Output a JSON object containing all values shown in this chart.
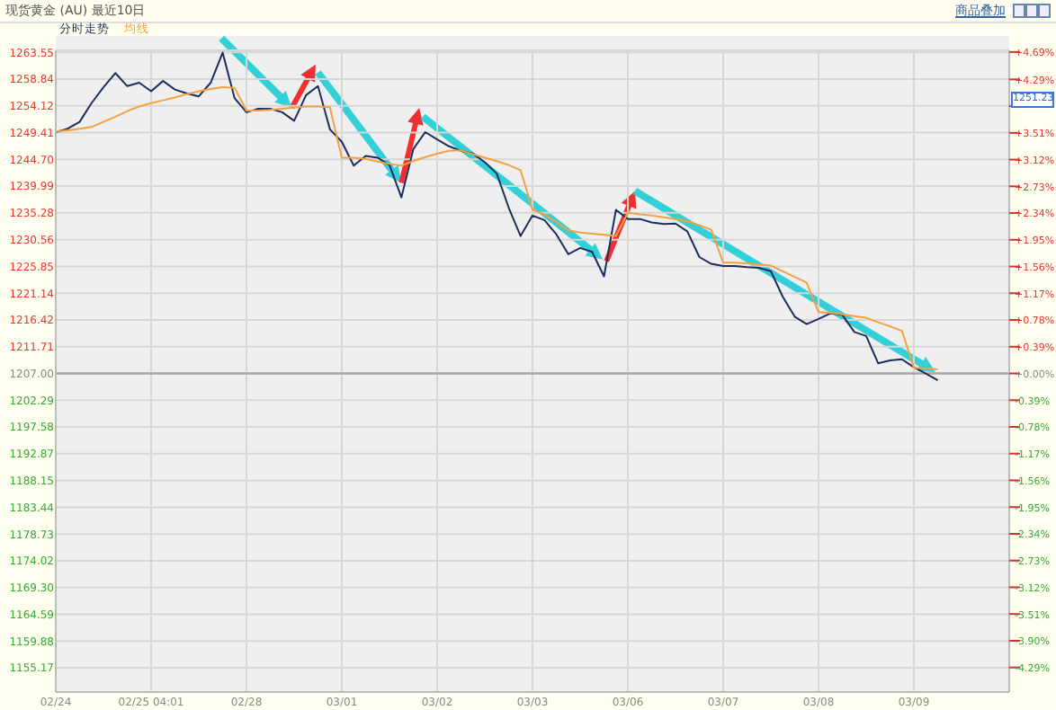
{
  "chart_data": {
    "type": "line",
    "title": "现货黄金 (AU) 最近10日",
    "annotations": [
      "商品叠加",
      "1251.23"
    ],
    "categories": [
      "02/24",
      null,
      null,
      null,
      null,
      null,
      null,
      null,
      "02/25 04:01",
      null,
      null,
      null,
      null,
      null,
      null,
      null,
      "02/28",
      null,
      null,
      null,
      null,
      null,
      null,
      null,
      "03/01",
      null,
      null,
      null,
      null,
      null,
      null,
      null,
      "03/02",
      null,
      null,
      null,
      null,
      null,
      null,
      null,
      "03/03",
      null,
      null,
      null,
      null,
      null,
      null,
      null,
      "03/06",
      null,
      null,
      null,
      null,
      null,
      null,
      null,
      "03/07",
      null,
      null,
      null,
      null,
      null,
      null,
      null,
      "03/08",
      null,
      null,
      null,
      null,
      null,
      null,
      null,
      "03/09",
      null,
      null,
      null,
      null,
      null,
      null,
      null
    ],
    "ylim": [
      1150.9,
      1263.9
    ],
    "yticks": [
      {
        "value": 1263.55,
        "label": "1263.55"
      },
      {
        "value": 1258.84,
        "label": "1258.84"
      },
      {
        "value": 1254.12,
        "label": "1254.12"
      },
      {
        "value": 1249.41,
        "label": "1249.41"
      },
      {
        "value": 1244.7,
        "label": "1244.70"
      },
      {
        "value": 1239.99,
        "label": "1239.99"
      },
      {
        "value": 1235.28,
        "label": "1235.28"
      },
      {
        "value": 1230.56,
        "label": "1230.56"
      },
      {
        "value": 1225.85,
        "label": "1225.85"
      },
      {
        "value": 1221.14,
        "label": "1221.14"
      },
      {
        "value": 1216.42,
        "label": "1216.42"
      },
      {
        "value": 1211.71,
        "label": "1211.71"
      },
      {
        "value": 1207.0,
        "label": "1207.00"
      },
      {
        "value": 1202.29,
        "label": "1202.29"
      },
      {
        "value": 1197.58,
        "label": "1197.58"
      },
      {
        "value": 1192.87,
        "label": "1192.87"
      },
      {
        "value": 1188.15,
        "label": "1188.15"
      },
      {
        "value": 1183.44,
        "label": "1183.44"
      },
      {
        "value": 1178.73,
        "label": "1178.73"
      },
      {
        "value": 1174.02,
        "label": "1174.02"
      },
      {
        "value": 1169.3,
        "label": "1169.30"
      },
      {
        "value": 1164.59,
        "label": "1164.59"
      },
      {
        "value": 1159.88,
        "label": "1159.88"
      },
      {
        "value": 1155.17,
        "label": "1155.17"
      }
    ],
    "y2lim": [
      -4.648,
      4.714
    ],
    "y2ticks": [
      {
        "value": 4.69,
        "label": "+4.69%"
      },
      {
        "value": 4.29,
        "label": "+4.29%"
      },
      {
        "value": 3.9,
        "label": null
      },
      {
        "value": 3.51,
        "label": "+3.51%"
      },
      {
        "value": 3.12,
        "label": "+3.12%"
      },
      {
        "value": 2.73,
        "label": "+2.73%"
      },
      {
        "value": 2.34,
        "label": "+2.34%"
      },
      {
        "value": 1.95,
        "label": "+1.95%"
      },
      {
        "value": 1.56,
        "label": "+1.56%"
      },
      {
        "value": 1.17,
        "label": "+1.17%"
      },
      {
        "value": 0.78,
        "label": "+0.78%"
      },
      {
        "value": 0.39,
        "label": "+0.39%"
      },
      {
        "value": 0,
        "label": "+0.00%"
      },
      {
        "value": -0.39,
        "label": "-0.39%"
      },
      {
        "value": -0.78,
        "label": "-0.78%"
      },
      {
        "value": -1.17,
        "label": "-1.17%"
      },
      {
        "value": -1.56,
        "label": "-1.56%"
      },
      {
        "value": -1.95,
        "label": "-1.95%"
      },
      {
        "value": -2.34,
        "label": "-2.34%"
      },
      {
        "value": -2.73,
        "label": "-2.73%"
      },
      {
        "value": -3.12,
        "label": "-3.12%"
      },
      {
        "value": -3.51,
        "label": "-3.51%"
      },
      {
        "value": -3.9,
        "label": "-3.90%"
      },
      {
        "value": -4.29,
        "label": "-4.29%"
      }
    ],
    "ref_lines": [
      {
        "axis": "y",
        "value": 1207.0,
        "color": "#a8a8a8"
      }
    ],
    "grid": true,
    "legend": "top left",
    "line_style": "solid",
    "series": [
      {
        "name": "分时走势",
        "color": "#1c2e5c",
        "values": [
          1249.5,
          1250.1,
          1251.3,
          1254.6,
          1257.4,
          1259.9,
          1257.6,
          1258.2,
          1256.7,
          1258.5,
          1257.0,
          1256.3,
          1255.8,
          1258.2,
          1263.5,
          1255.5,
          1253.0,
          1253.6,
          1253.6,
          1253.0,
          1251.5,
          1256.0,
          1257.6,
          1250.0,
          1247.8,
          1243.6,
          1245.3,
          1245.0,
          1243.7,
          1238.0,
          1246.5,
          1249.5,
          1248.2,
          1247.0,
          1246.2,
          1245.7,
          1244.2,
          1242.2,
          1236.2,
          1231.2,
          1234.8,
          1234.0,
          1231.5,
          1228.0,
          1229.1,
          1228.4,
          1224.1,
          1235.8,
          1234.2,
          1234.2,
          1233.6,
          1233.3,
          1233.4,
          1232.0,
          1227.5,
          1226.3,
          1225.9,
          1225.9,
          1225.7,
          1225.6,
          1225.0,
          1220.5,
          1217.0,
          1215.7,
          1216.6,
          1217.6,
          1217.3,
          1214.3,
          1213.6,
          1208.8,
          1209.3,
          1209.5,
          1208.1,
          1207.0,
          1205.8,
          null,
          null,
          null,
          null,
          null
        ]
      },
      {
        "name": "均线",
        "color": "#f5a040",
        "values": [
          1249.6,
          1249.8,
          1250.1,
          1250.4,
          1251.3,
          1252.2,
          1253.2,
          1254.0,
          1254.6,
          1255.1,
          1255.6,
          1256.2,
          1256.7,
          1257.1,
          1257.4,
          1257.3,
          1253.3,
          1253.3,
          1253.4,
          1253.6,
          1253.8,
          1254.0,
          1254.0,
          1253.9,
          1245.0,
          1245.0,
          1244.8,
          1244.3,
          1243.9,
          1243.6,
          1244.4,
          1245.1,
          1245.7,
          1246.2,
          1246.3,
          1245.6,
          1245.0,
          1244.4,
          1243.7,
          1242.8,
          1235.8,
          1235.0,
          1233.6,
          1232.2,
          1231.8,
          1231.6,
          1231.4,
          1231.2,
          1235.3,
          1235.0,
          1234.8,
          1234.5,
          1234.2,
          1233.8,
          1233.1,
          1232.3,
          1226.5,
          1226.5,
          1226.4,
          1226.2,
          1226.0,
          1225.0,
          1224.0,
          1223.0,
          1217.8,
          1217.7,
          1217.4,
          1217.1,
          1216.8,
          1216.0,
          1215.3,
          1214.5,
          1208.0,
          1207.9,
          1207.7,
          null,
          null,
          null,
          null,
          null
        ]
      }
    ]
  }
}
